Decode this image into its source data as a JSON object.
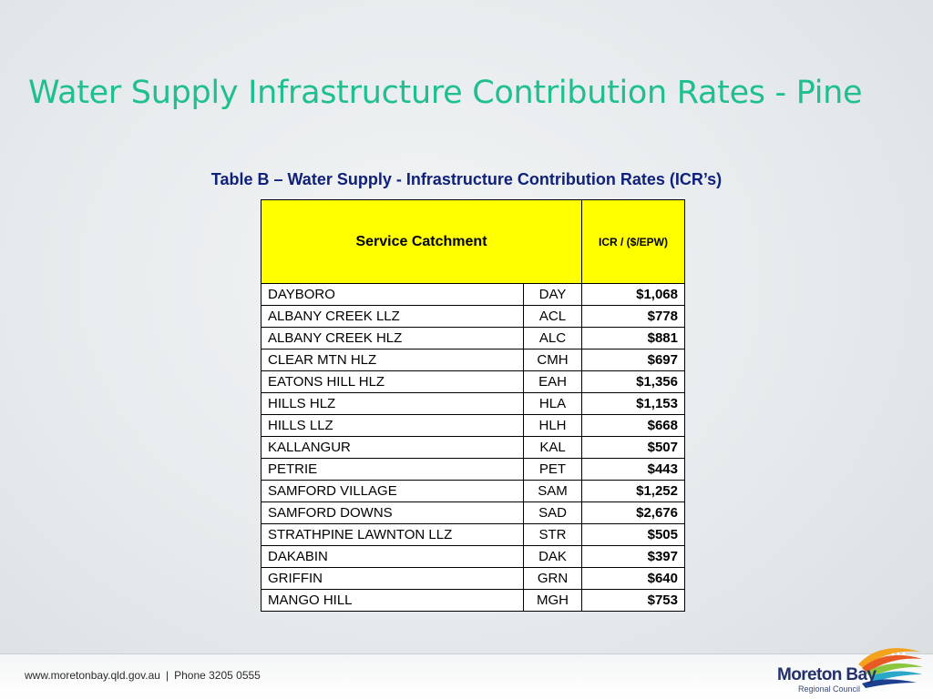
{
  "slide": {
    "title": "Water Supply Infrastructure Contribution Rates - Pine"
  },
  "table": {
    "caption": "Table B – Water Supply - Infrastructure Contribution Rates (ICR’s)",
    "headers": {
      "catchment": "Service Catchment",
      "icr": "ICR / ($/EPW)"
    },
    "header_color": "#ffff00",
    "rows": [
      {
        "name": "DAYBORO",
        "code": "DAY",
        "rate": "$1,068"
      },
      {
        "name": "ALBANY CREEK LLZ",
        "code": "ACL",
        "rate": "$778"
      },
      {
        "name": "ALBANY CREEK HLZ",
        "code": "ALC",
        "rate": "$881"
      },
      {
        "name": "CLEAR MTN HLZ",
        "code": "CMH",
        "rate": "$697"
      },
      {
        "name": "EATONS HILL HLZ",
        "code": "EAH",
        "rate": "$1,356"
      },
      {
        "name": "HILLS HLZ",
        "code": "HLA",
        "rate": "$1,153"
      },
      {
        "name": "HILLS LLZ",
        "code": "HLH",
        "rate": "$668"
      },
      {
        "name": "KALLANGUR",
        "code": "KAL",
        "rate": "$507"
      },
      {
        "name": "PETRIE",
        "code": "PET",
        "rate": "$443"
      },
      {
        "name": "SAMFORD VILLAGE",
        "code": "SAM",
        "rate": "$1,252"
      },
      {
        "name": "SAMFORD DOWNS",
        "code": "SAD",
        "rate": "$2,676"
      },
      {
        "name": "STRATHPINE LAWNTON LLZ",
        "code": "STR",
        "rate": "$505"
      },
      {
        "name": "DAKABIN",
        "code": "DAK",
        "rate": "$397"
      },
      {
        "name": "GRIFFIN",
        "code": "GRN",
        "rate": "$640"
      },
      {
        "name": "MANGO HILL",
        "code": "MGH",
        "rate": "$753"
      }
    ]
  },
  "footer": {
    "website": "www.moretonbay.qld.gov.au",
    "separator": "|",
    "phone": "Phone 3205 0555"
  },
  "logo": {
    "name": "Moreton Bay",
    "subtitle": "Regional Council",
    "icon": "moreton-bay-wave-logo-icon"
  },
  "colors": {
    "title": "#1fbf8f",
    "caption": "#10217a",
    "logo_text": "#23306b"
  }
}
